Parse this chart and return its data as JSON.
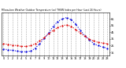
{
  "title": "Milwaukee Weather Outdoor Temperature (vs) THSW Index per Hour (Last 24 Hours)",
  "hours": [
    0,
    1,
    2,
    3,
    4,
    5,
    6,
    7,
    8,
    9,
    10,
    11,
    12,
    13,
    14,
    15,
    16,
    17,
    18,
    19,
    20,
    21,
    22,
    23
  ],
  "temp": [
    28,
    27,
    26,
    25,
    24,
    24,
    25,
    28,
    32,
    37,
    43,
    48,
    52,
    55,
    56,
    54,
    49,
    44,
    39,
    35,
    32,
    30,
    29,
    28
  ],
  "thsw": [
    20,
    19,
    18,
    17,
    16,
    16,
    17,
    21,
    28,
    36,
    44,
    54,
    61,
    65,
    67,
    64,
    57,
    48,
    40,
    34,
    28,
    25,
    23,
    21
  ],
  "temp_color": "#dd0000",
  "thsw_color": "#0000dd",
  "bg_color": "#ffffff",
  "grid_color": "#888888",
  "ylim_min": 10,
  "ylim_max": 75,
  "ytick_vals": [
    15,
    25,
    35,
    45,
    55,
    65
  ],
  "ytick_labels": [
    "15",
    "25",
    "35",
    "45",
    "55",
    "65"
  ]
}
